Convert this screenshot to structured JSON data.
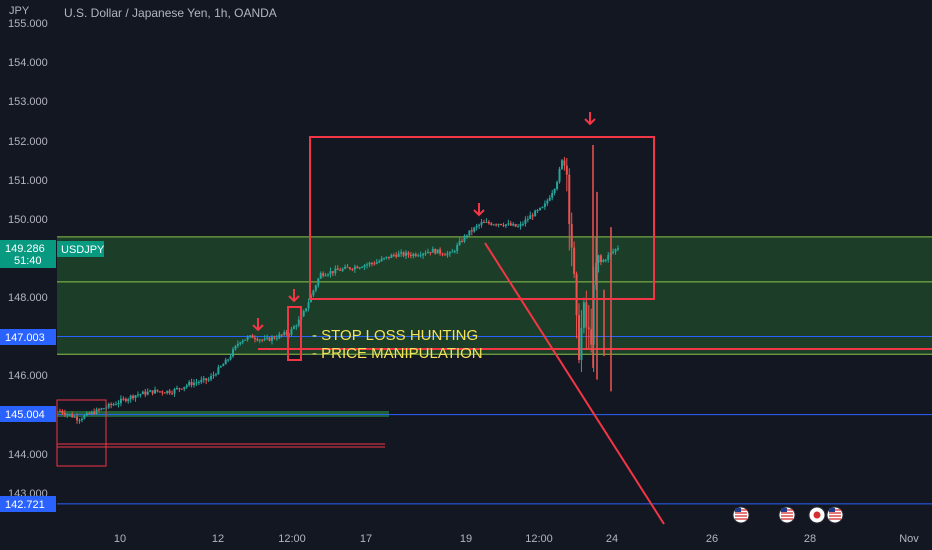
{
  "header": {
    "currency_label": "JPY",
    "title": "U.S. Dollar / Japanese Yen, 1h, OANDA"
  },
  "colors": {
    "background": "#131722",
    "up": "#26a69a",
    "down": "#ef5350",
    "box": "#f23645",
    "zone_fill": "#2e7d32",
    "zone_line": "#8bc34a",
    "blue_line": "#2962ff",
    "annotation": "#f5e15a",
    "price_badge": "#089981"
  },
  "chart_data": {
    "type": "candlestick",
    "symbol": "USDJPY",
    "timeframe": "1h",
    "y_ticks": [
      "155.000",
      "154.000",
      "153.000",
      "152.000",
      "151.000",
      "150.000",
      "148.000",
      "146.000",
      "144.000",
      "143.000"
    ],
    "x_ticks": [
      "10",
      "12",
      "12:00",
      "17",
      "19",
      "12:00",
      "24",
      "26",
      "28",
      "Nov"
    ],
    "ylim": [
      142.2,
      155.2
    ],
    "price_labels": [
      {
        "name": "USDJPY",
        "value": "149.286",
        "countdown": "51:40",
        "color": "#089981"
      },
      {
        "name": "level-147",
        "value": "147.003",
        "color": "#2962ff"
      },
      {
        "name": "level-145",
        "value": "145.004",
        "color": "#2962ff"
      },
      {
        "name": "level-142",
        "value": "142.721",
        "color": "#2962ff"
      }
    ],
    "horizontal_levels": [
      147.003,
      145.004,
      142.721
    ],
    "zone": {
      "top": 149.55,
      "bottom": 146.55,
      "mid_line": 148.4
    },
    "annotations": [
      "- STOP LOSS HUNTING",
      "- PRICE MANIPULATION"
    ],
    "price_path": [
      [
        0,
        145.1
      ],
      [
        0.03,
        144.9
      ],
      [
        0.06,
        145.1
      ],
      [
        0.09,
        145.3
      ],
      [
        0.12,
        145.5
      ],
      [
        0.15,
        145.6
      ],
      [
        0.18,
        145.6
      ],
      [
        0.21,
        145.8
      ],
      [
        0.24,
        145.9
      ],
      [
        0.27,
        146.4
      ],
      [
        0.29,
        146.9
      ],
      [
        0.31,
        147.0
      ],
      [
        0.33,
        146.9
      ],
      [
        0.35,
        147.0
      ],
      [
        0.37,
        147.1
      ],
      [
        0.39,
        147.5
      ],
      [
        0.42,
        148.6
      ],
      [
        0.45,
        148.7
      ],
      [
        0.48,
        148.8
      ],
      [
        0.51,
        148.9
      ],
      [
        0.54,
        149.1
      ],
      [
        0.57,
        149.1
      ],
      [
        0.6,
        149.2
      ],
      [
        0.63,
        149.1
      ],
      [
        0.655,
        149.6
      ],
      [
        0.68,
        149.9
      ],
      [
        0.71,
        149.9
      ],
      [
        0.74,
        149.8
      ],
      [
        0.76,
        150.1
      ],
      [
        0.78,
        150.3
      ],
      [
        0.8,
        150.9
      ],
      [
        0.815,
        151.8
      ],
      [
        0.825,
        149.5
      ],
      [
        0.835,
        146.6
      ],
      [
        0.845,
        147.5
      ],
      [
        0.855,
        146.8
      ],
      [
        0.865,
        148.8
      ],
      [
        0.88,
        149.0
      ],
      [
        0.9,
        149.286
      ]
    ]
  }
}
